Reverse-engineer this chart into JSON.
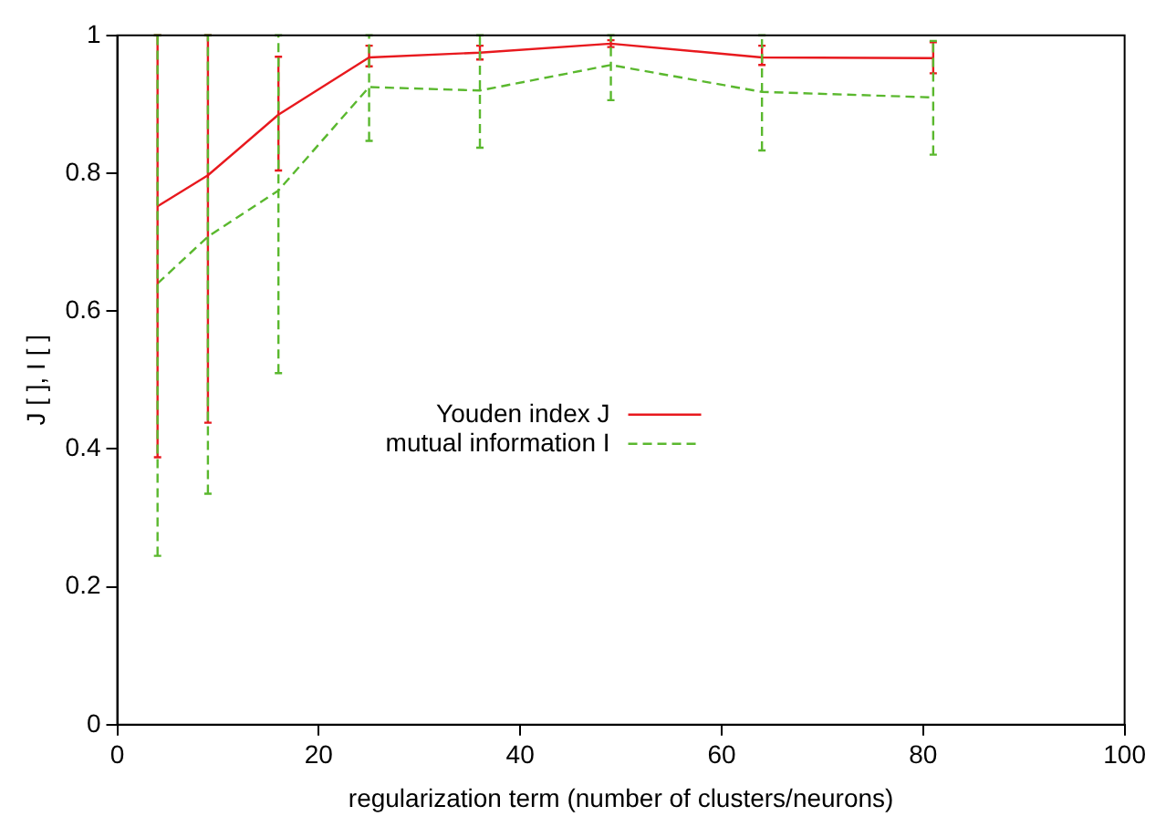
{
  "chart_data": {
    "type": "line",
    "xlabel": "regularization term (number of clusters/neurons)",
    "ylabel": "J [ ], I [ ]",
    "x": [
      4,
      9,
      16,
      25,
      36,
      49,
      64,
      81
    ],
    "xlim": [
      0,
      100
    ],
    "xticks": [
      0,
      20,
      40,
      60,
      80,
      100
    ],
    "ylim": [
      0,
      1
    ],
    "yticks": [
      0,
      0.2,
      0.4,
      0.6,
      0.8,
      1
    ],
    "grid": false,
    "legend": "center",
    "marker": "none",
    "series": [
      {
        "name": "Youden index J",
        "color": "#e8191e",
        "line_style": "solid",
        "values": [
          0.752,
          0.797,
          0.885,
          0.968,
          0.975,
          0.988,
          0.968,
          0.967
        ],
        "errors": [
          [
            0.388,
            1
          ],
          [
            0.438,
            1
          ],
          [
            0.804,
            0.969
          ],
          [
            0.955,
            0.985
          ],
          [
            0.965,
            0.985
          ],
          [
            0.983,
            0.993
          ],
          [
            0.957,
            0.985
          ],
          [
            0.945,
            0.99
          ]
        ]
      },
      {
        "name": "mutual information I",
        "color": "#5ab82e",
        "line_style": "dashed",
        "values": [
          0.64,
          0.708,
          0.775,
          0.925,
          0.92,
          0.957,
          0.918,
          0.91
        ],
        "errors": [
          [
            0.245,
            1
          ],
          [
            0.335,
            1
          ],
          [
            0.51,
            1
          ],
          [
            0.847,
            1
          ],
          [
            0.837,
            1
          ],
          [
            0.906,
            1
          ],
          [
            0.833,
            1
          ],
          [
            0.827,
            0.992
          ]
        ]
      }
    ]
  }
}
